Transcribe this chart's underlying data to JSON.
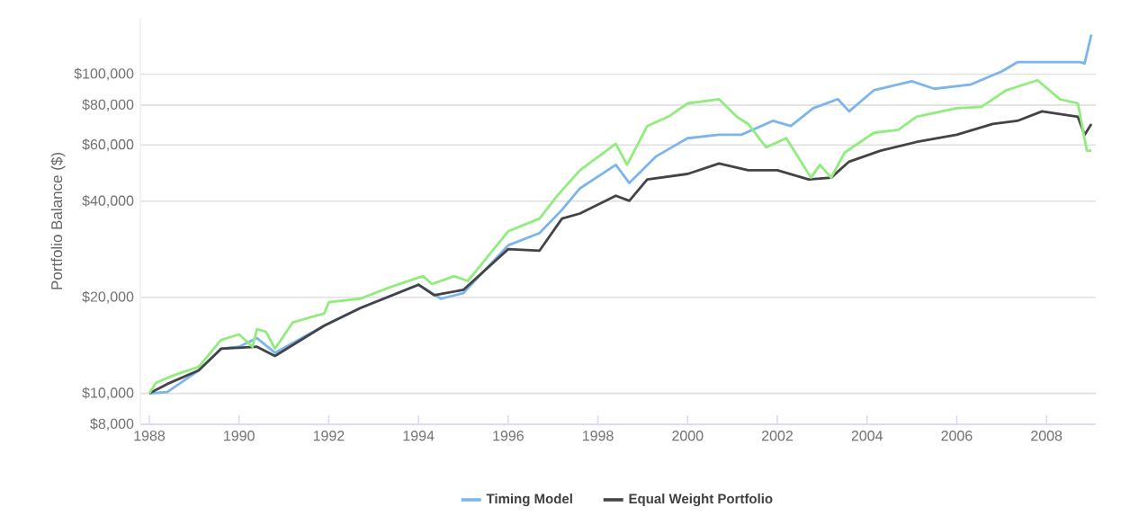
{
  "chart_data": {
    "type": "line",
    "ylabel": "Portfolio Balance ($)",
    "log": "y",
    "grid": "y",
    "legend": "bottom",
    "marker": "none",
    "line_style": "solid",
    "xlim": [
      1987.8,
      2009.1
    ],
    "xticks": [
      1988,
      1990,
      1992,
      1994,
      1996,
      1998,
      2000,
      2002,
      2004,
      2006,
      2008
    ],
    "ylim": [
      8000,
      150000
    ],
    "yticks": [
      {
        "value": 8000,
        "label": "$8,000"
      },
      {
        "value": 10000,
        "label": "$10,000"
      },
      {
        "value": 20000,
        "label": "$20,000"
      },
      {
        "value": 40000,
        "label": "$40,000"
      },
      {
        "value": 60000,
        "label": "$60,000"
      },
      {
        "value": 80000,
        "label": "$80,000"
      },
      {
        "value": 100000,
        "label": "$100,000"
      }
    ],
    "series": [
      {
        "name": "Timing Model",
        "color": "#7cb5ec",
        "x": [
          1988.0,
          1988.4,
          1989.1,
          1989.6,
          1990.0,
          1990.4,
          1990.8,
          1991.9,
          1992.7,
          1994.0,
          1994.5,
          1995.0,
          1996.0,
          1996.7,
          1997.2,
          1997.6,
          1998.4,
          1998.7,
          1999.3,
          2000.0,
          2000.7,
          2001.2,
          2001.9,
          2002.3,
          2002.8,
          2003.35,
          2003.6,
          2004.15,
          2005.0,
          2005.5,
          2006.3,
          2007.0,
          2007.35,
          2008.15,
          2008.75,
          2008.85,
          2009.0
        ],
        "values": [
          10000,
          10100,
          11800,
          13800,
          14000,
          14900,
          13400,
          16300,
          18500,
          21900,
          19800,
          20600,
          29100,
          31800,
          37600,
          43900,
          52000,
          45600,
          55300,
          63000,
          64600,
          64600,
          71400,
          68800,
          78200,
          83500,
          76500,
          89000,
          95000,
          90000,
          92700,
          102000,
          109000,
          109000,
          109000,
          108000,
          133000
        ]
      },
      {
        "name": "Equal Weight Portfolio",
        "color": "#434348",
        "x": [
          1988.0,
          1988.4,
          1989.1,
          1989.6,
          1990.0,
          1990.4,
          1990.8,
          1991.9,
          1992.7,
          1994.0,
          1994.35,
          1995.0,
          1996.0,
          1996.7,
          1997.2,
          1997.6,
          1998.4,
          1998.7,
          1999.1,
          2000.0,
          2000.7,
          2001.35,
          2002.0,
          2002.7,
          2003.2,
          2003.6,
          2004.3,
          2005.1,
          2006.0,
          2006.8,
          2007.35,
          2007.9,
          2008.7,
          2008.85,
          2009.0
        ],
        "values": [
          10000,
          10700,
          11800,
          13800,
          13900,
          14000,
          13100,
          16300,
          18500,
          21900,
          20300,
          21100,
          28300,
          28000,
          35300,
          36600,
          41600,
          40100,
          46800,
          48700,
          52500,
          50000,
          50000,
          46800,
          47400,
          53200,
          57600,
          61300,
          64600,
          69800,
          71400,
          76500,
          73500,
          64600,
          69800
        ]
      },
      {
        "color": "#90ed7d",
        "x": [
          1988.0,
          1988.15,
          1988.55,
          1989.1,
          1989.6,
          1990.0,
          1990.3,
          1990.4,
          1990.6,
          1990.8,
          1991.2,
          1991.9,
          1992.0,
          1992.7,
          1993.4,
          1994.1,
          1994.3,
          1994.8,
          1995.1,
          1996.0,
          1996.7,
          1997.1,
          1997.6,
          1998.4,
          1998.65,
          1999.1,
          1999.6,
          2000.0,
          2000.7,
          2001.1,
          2001.35,
          2001.75,
          2002.2,
          2002.75,
          2002.95,
          2003.2,
          2003.5,
          2004.15,
          2004.7,
          2005.1,
          2006.0,
          2006.55,
          2007.1,
          2007.8,
          2008.3,
          2008.7,
          2008.9,
          2009.0
        ],
        "values": [
          10000,
          10800,
          11400,
          12100,
          14700,
          15300,
          14000,
          15900,
          15600,
          13800,
          16700,
          17800,
          19300,
          19800,
          21600,
          23300,
          22000,
          23300,
          22500,
          32200,
          35300,
          41700,
          50000,
          60500,
          52000,
          68800,
          74000,
          81000,
          83500,
          73500,
          69800,
          59000,
          63000,
          47400,
          52000,
          47400,
          56800,
          65500,
          67000,
          73500,
          78200,
          79000,
          89000,
          95700,
          83500,
          81000,
          57600,
          57600
        ]
      }
    ]
  }
}
